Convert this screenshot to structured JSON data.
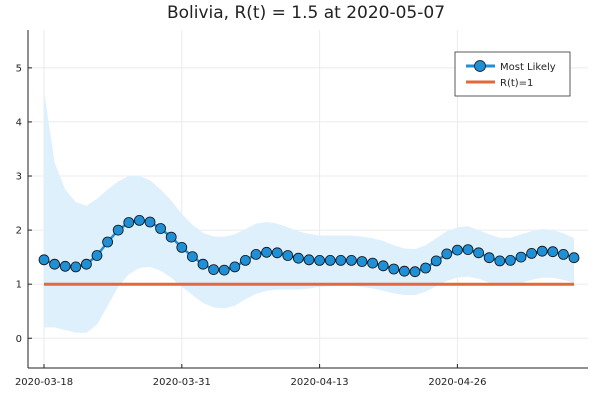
{
  "chart_data": {
    "type": "line",
    "title": "Bolivia, R(t) = 1.5 at 2020-05-07",
    "xlabel": "",
    "ylabel": "",
    "x": [
      "2020-03-18",
      "2020-03-19",
      "2020-03-20",
      "2020-03-21",
      "2020-03-22",
      "2020-03-23",
      "2020-03-24",
      "2020-03-25",
      "2020-03-26",
      "2020-03-27",
      "2020-03-28",
      "2020-03-29",
      "2020-03-30",
      "2020-03-31",
      "2020-04-01",
      "2020-04-02",
      "2020-04-03",
      "2020-04-04",
      "2020-04-05",
      "2020-04-06",
      "2020-04-07",
      "2020-04-08",
      "2020-04-09",
      "2020-04-10",
      "2020-04-11",
      "2020-04-12",
      "2020-04-13",
      "2020-04-14",
      "2020-04-15",
      "2020-04-16",
      "2020-04-17",
      "2020-04-18",
      "2020-04-19",
      "2020-04-20",
      "2020-04-21",
      "2020-04-22",
      "2020-04-23",
      "2020-04-24",
      "2020-04-25",
      "2020-04-26",
      "2020-04-27",
      "2020-04-28",
      "2020-04-29",
      "2020-04-30",
      "2020-05-01",
      "2020-05-02",
      "2020-05-03",
      "2020-05-04",
      "2020-05-05",
      "2020-05-06",
      "2020-05-07"
    ],
    "x_ticks": [
      "2020-03-18",
      "2020-03-31",
      "2020-04-13",
      "2020-04-26"
    ],
    "y_ticks": [
      0,
      1,
      2,
      3,
      4,
      5
    ],
    "ylim": [
      -0.55,
      5.7
    ],
    "series": [
      {
        "name": "Most Likely",
        "color": "#1f8fd6",
        "marker": "circle",
        "values": [
          1.45,
          1.37,
          1.33,
          1.32,
          1.37,
          1.53,
          1.78,
          2.0,
          2.14,
          2.18,
          2.15,
          2.03,
          1.87,
          1.68,
          1.51,
          1.37,
          1.27,
          1.26,
          1.32,
          1.44,
          1.55,
          1.59,
          1.58,
          1.53,
          1.48,
          1.45,
          1.44,
          1.44,
          1.44,
          1.44,
          1.42,
          1.39,
          1.34,
          1.28,
          1.24,
          1.23,
          1.3,
          1.43,
          1.56,
          1.63,
          1.64,
          1.58,
          1.49,
          1.43,
          1.44,
          1.5,
          1.57,
          1.61,
          1.6,
          1.55,
          1.49
        ]
      },
      {
        "name": "R(t)=1",
        "color": "#e2693c",
        "marker": "none",
        "values": [
          1,
          1,
          1,
          1,
          1,
          1,
          1,
          1,
          1,
          1,
          1,
          1,
          1,
          1,
          1,
          1,
          1,
          1,
          1,
          1,
          1,
          1,
          1,
          1,
          1,
          1,
          1,
          1,
          1,
          1,
          1,
          1,
          1,
          1,
          1,
          1,
          1,
          1,
          1,
          1,
          1,
          1,
          1,
          1,
          1,
          1,
          1,
          1,
          1,
          1,
          1
        ]
      }
    ],
    "band": {
      "color": "#dff0fd",
      "upper": [
        4.58,
        3.25,
        2.75,
        2.52,
        2.45,
        2.58,
        2.75,
        2.9,
        3.0,
        3.0,
        2.92,
        2.75,
        2.55,
        2.3,
        2.1,
        1.95,
        1.88,
        1.88,
        1.92,
        2.02,
        2.12,
        2.15,
        2.12,
        2.05,
        1.98,
        1.93,
        1.9,
        1.9,
        1.9,
        1.9,
        1.88,
        1.85,
        1.8,
        1.72,
        1.66,
        1.65,
        1.72,
        1.85,
        1.98,
        2.05,
        2.07,
        2.0,
        1.92,
        1.86,
        1.86,
        1.92,
        1.98,
        2.02,
        2.0,
        1.94,
        1.85
      ],
      "lower": [
        0.2,
        0.2,
        0.15,
        0.1,
        0.1,
        0.25,
        0.6,
        0.95,
        1.18,
        1.3,
        1.32,
        1.25,
        1.12,
        0.95,
        0.8,
        0.65,
        0.57,
        0.55,
        0.6,
        0.72,
        0.82,
        0.88,
        0.9,
        0.9,
        0.9,
        0.92,
        0.95,
        0.96,
        0.97,
        0.97,
        0.95,
        0.92,
        0.88,
        0.83,
        0.8,
        0.8,
        0.86,
        0.96,
        1.06,
        1.12,
        1.14,
        1.1,
        1.03,
        0.98,
        0.98,
        1.02,
        1.08,
        1.12,
        1.12,
        1.08,
        1.02
      ]
    },
    "grid": true,
    "legend_position": "top-right"
  }
}
